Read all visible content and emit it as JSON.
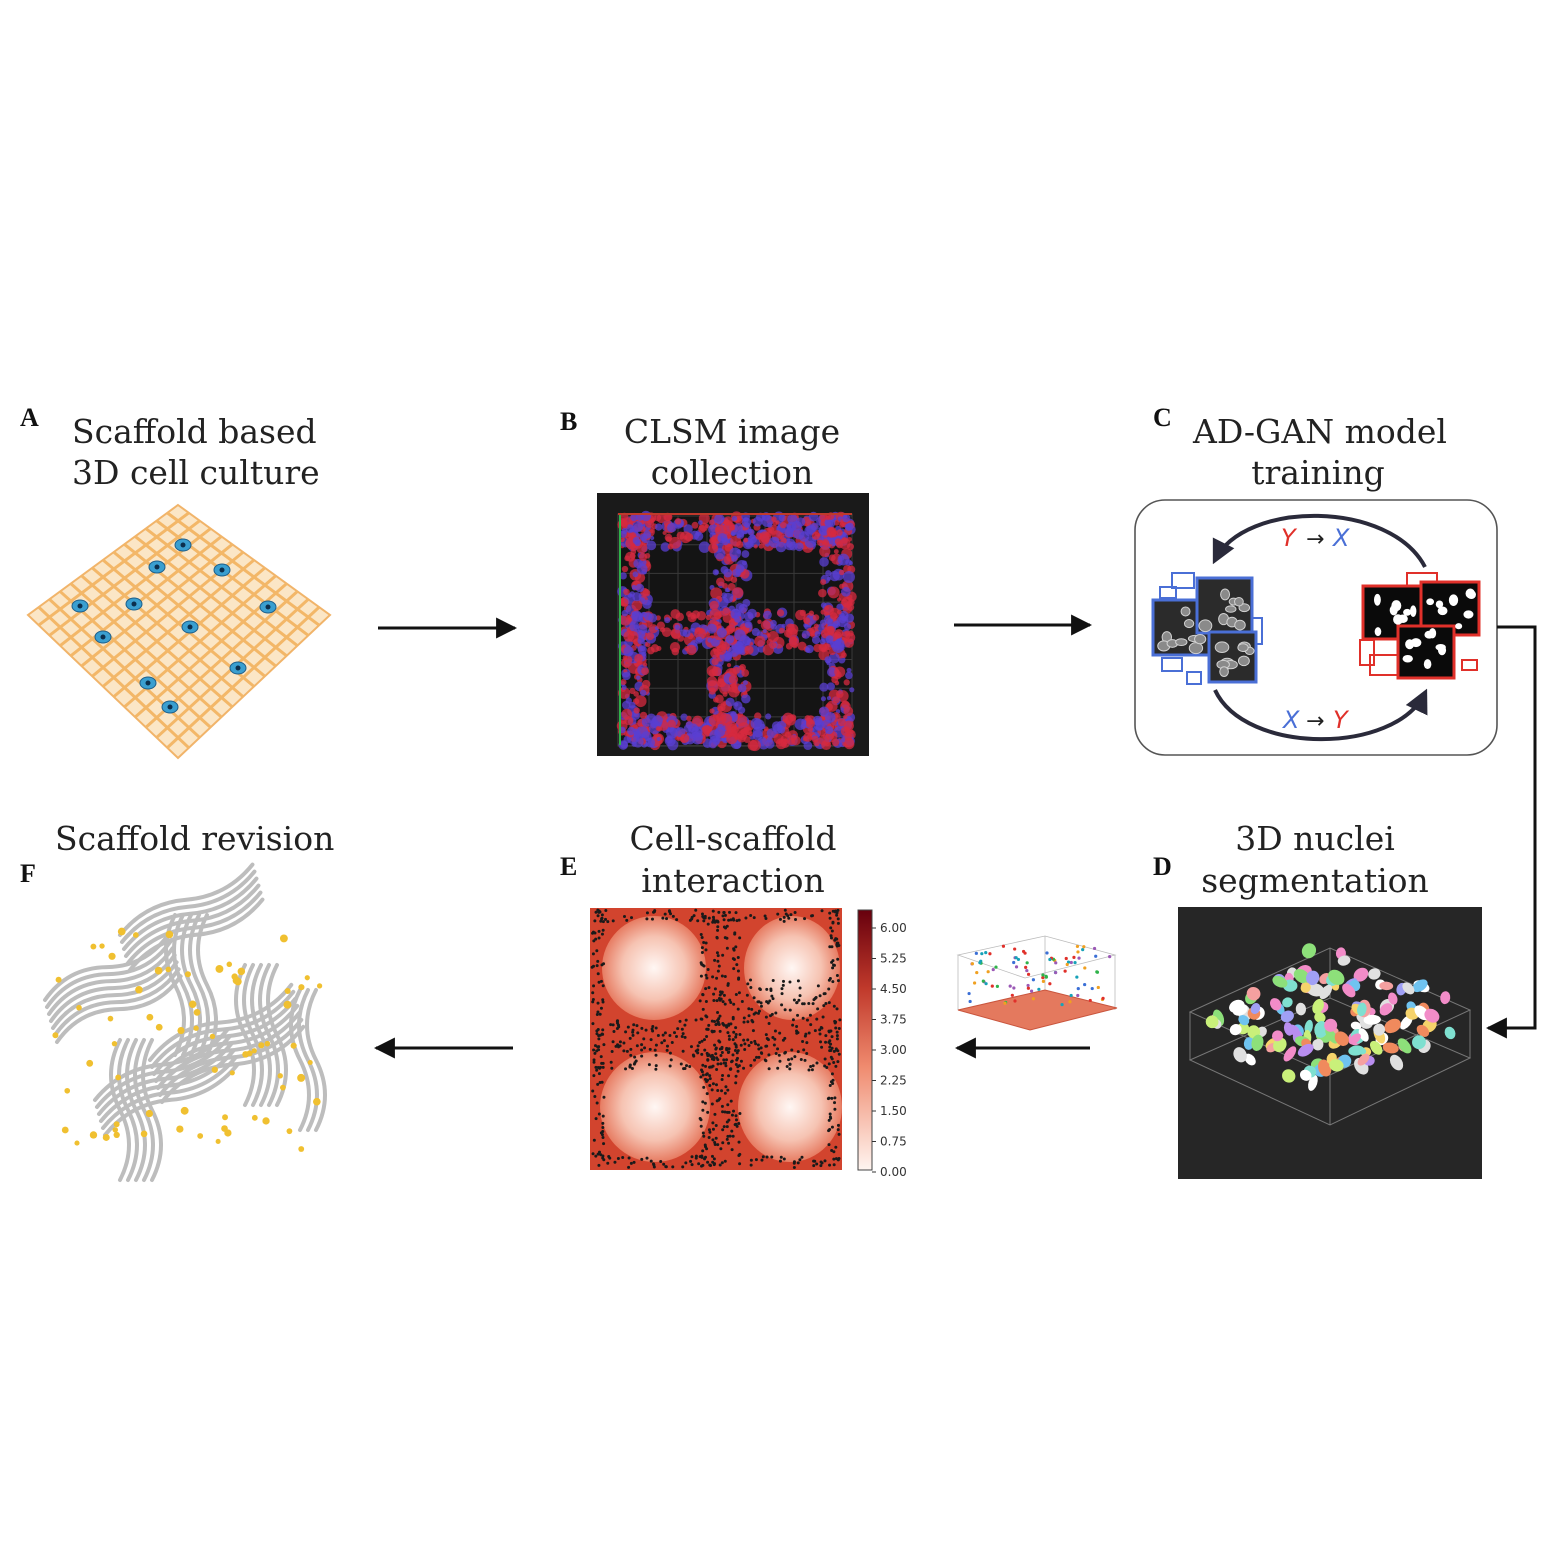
{
  "panels": {
    "A": {
      "letter": "A",
      "title_line1": "Scaffold based",
      "title_line2": "3D cell culture"
    },
    "B": {
      "letter": "B",
      "title_line1": "CLSM image",
      "title_line2": "collection"
    },
    "C": {
      "letter": "C",
      "title_line1": "AD-GAN model",
      "title_line2": "training",
      "top_arrow": {
        "from": "Y",
        "arrow": "→",
        "to": "X"
      },
      "bottom_arrow": {
        "from": "X",
        "arrow": "→",
        "to": "Y"
      }
    },
    "D": {
      "letter": "D",
      "title_line1": "3D nuclei",
      "title_line2": "segmentation"
    },
    "E": {
      "letter": "E",
      "title_line1": "Cell-scaffold",
      "title_line2": "interaction",
      "colorbar_ticks": [
        "6.00",
        "5.25",
        "4.50",
        "3.75",
        "3.00",
        "2.25",
        "1.50",
        "0.75",
        "0.00"
      ]
    },
    "F": {
      "letter": "F",
      "title": "Scaffold revision"
    }
  },
  "colors": {
    "domain_x": "#4a6fd6",
    "domain_y": "#e0302a",
    "scaffold_a": "#f6c27a",
    "cell_a": "#3a9fd0",
    "scaffold_f": "#bdbdbd",
    "cell_f": "#f0c030",
    "heat_high": "#c0392b"
  }
}
